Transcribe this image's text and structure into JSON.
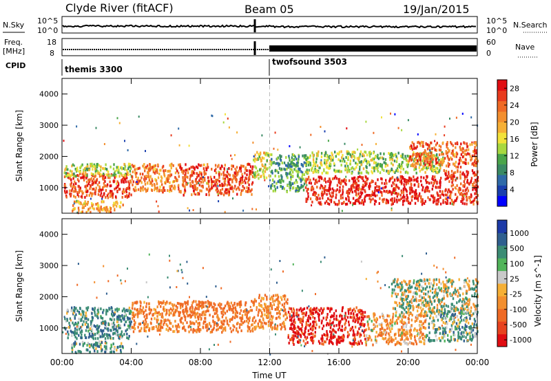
{
  "header": {
    "station": "Clyde River (fitACF)",
    "beam": "Beam 05",
    "date": "19/Jan/2015"
  },
  "top_panels": {
    "nsky_label": "N.Sky",
    "nsearch_label": "N.Search",
    "nsky_ticks": [
      "10^5",
      "10^0"
    ],
    "nsearch_ticks": [
      "10^5",
      "10^0"
    ],
    "freq_label": "Freq.",
    "freq_unit": "[MHz]",
    "freq_ticks": [
      "18",
      "8"
    ],
    "nave_label": "Nave",
    "nave_ticks": [
      "60",
      "0"
    ],
    "cpid_label": "CPID",
    "cpid_modes": [
      {
        "name": "themis 3300",
        "start": "00:00"
      },
      {
        "name": "twofsound 3503",
        "start": "12:00"
      }
    ]
  },
  "colors": {
    "power_scale": [
      "#0000ff",
      "#1a3fae",
      "#2f6aa8",
      "#3a8a64",
      "#4aa54a",
      "#a8d840",
      "#f2e23a",
      "#f6b036",
      "#f38f2f",
      "#ef6a25",
      "#e83b1e",
      "#e00d12"
    ],
    "velocity_scale": [
      "#1d3aa8",
      "#2f5f8f",
      "#3b8c74",
      "#51b45a",
      "#a9d84a",
      "#c9c9c9",
      "#f6b036",
      "#f38f2f",
      "#ef6a25",
      "#e8431f",
      "#e00d12"
    ]
  },
  "chart_data": [
    {
      "type": "heatmap",
      "ylabel": "Slant Range [km]",
      "xlabel": "",
      "ylim": [
        180,
        4500
      ],
      "yticks": [
        1000,
        2000,
        3000,
        4000
      ],
      "xticks": [
        "00:00",
        "04:00",
        "08:00",
        "12:00",
        "16:00",
        "20:00",
        "00:00"
      ],
      "xlim_hours": [
        0,
        24
      ],
      "colorbar": {
        "label": "Power [dB]",
        "ticks": [
          "4",
          "8",
          "12",
          "16",
          "20",
          "24",
          "28"
        ],
        "range": [
          0,
          30
        ]
      },
      "regions": [
        {
          "x": [
            0.1,
            4.0
          ],
          "y": [
            700,
            1500
          ],
          "value": 26
        },
        {
          "x": [
            0.1,
            4.0
          ],
          "y": [
            1400,
            1800
          ],
          "value": 14
        },
        {
          "x": [
            4.0,
            6.6
          ],
          "y": [
            900,
            1800
          ],
          "value": 22
        },
        {
          "x": [
            6.6,
            11.0
          ],
          "y": [
            800,
            1800
          ],
          "value": 25
        },
        {
          "x": [
            11.0,
            12.0
          ],
          "y": [
            1300,
            2200
          ],
          "value": 16
        },
        {
          "x": [
            12.0,
            14.0
          ],
          "y": [
            900,
            2100
          ],
          "value": 10
        },
        {
          "x": [
            14.0,
            22.0
          ],
          "y": [
            500,
            1400
          ],
          "value": 28
        },
        {
          "x": [
            14.0,
            22.0
          ],
          "y": [
            1500,
            2200
          ],
          "value": 14
        },
        {
          "x": [
            20.0,
            24.0
          ],
          "y": [
            1700,
            2500
          ],
          "value": 24
        },
        {
          "x": [
            22.0,
            24.0
          ],
          "y": [
            500,
            1600
          ],
          "value": 26
        },
        {
          "x": [
            0.5,
            3.5
          ],
          "y": [
            250,
            600
          ],
          "value": 20
        }
      ]
    },
    {
      "type": "heatmap",
      "ylabel": "Slant Range [km]",
      "xlabel": "Time UT",
      "ylim": [
        180,
        4500
      ],
      "yticks": [
        1000,
        2000,
        3000,
        4000
      ],
      "xticks": [
        "00:00",
        "04:00",
        "08:00",
        "12:00",
        "16:00",
        "20:00",
        "00:00"
      ],
      "xlim_hours": [
        0,
        24
      ],
      "colorbar": {
        "label": "Velocity [m s^-1]",
        "ticks": [
          "1000",
          "500",
          "100",
          "25",
          "-25",
          "-100",
          "-500",
          "-1000"
        ]
      },
      "regions": [
        {
          "x": [
            0.1,
            4.0
          ],
          "y": [
            700,
            1700
          ],
          "value": 200
        },
        {
          "x": [
            4.0,
            6.6
          ],
          "y": [
            900,
            1900
          ],
          "value": -300
        },
        {
          "x": [
            6.6,
            11.0
          ],
          "y": [
            900,
            1900
          ],
          "value": -400
        },
        {
          "x": [
            11.0,
            13.0
          ],
          "y": [
            1000,
            2100
          ],
          "value": -300
        },
        {
          "x": [
            13.0,
            17.5
          ],
          "y": [
            500,
            1700
          ],
          "value": -800
        },
        {
          "x": [
            17.5,
            21.0
          ],
          "y": [
            500,
            1500
          ],
          "value": -200
        },
        {
          "x": [
            19.0,
            24.0
          ],
          "y": [
            1500,
            2600
          ],
          "value": 0
        },
        {
          "x": [
            21.0,
            24.0
          ],
          "y": [
            600,
            1600
          ],
          "value": 150
        },
        {
          "x": [
            0.5,
            3.5
          ],
          "y": [
            250,
            600
          ],
          "value": 150
        }
      ]
    }
  ]
}
